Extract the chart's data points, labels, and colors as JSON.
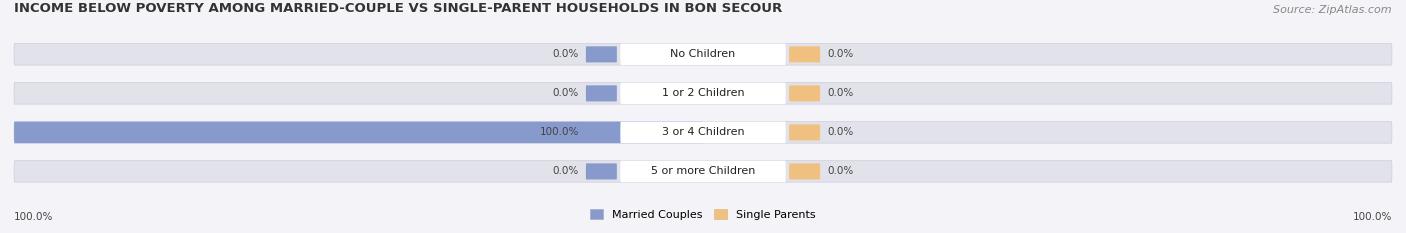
{
  "title": "INCOME BELOW POVERTY AMONG MARRIED-COUPLE VS SINGLE-PARENT HOUSEHOLDS IN BON SECOUR",
  "source": "Source: ZipAtlas.com",
  "categories": [
    "No Children",
    "1 or 2 Children",
    "3 or 4 Children",
    "5 or more Children"
  ],
  "married_values": [
    0.0,
    0.0,
    100.0,
    0.0
  ],
  "single_values": [
    0.0,
    0.0,
    0.0,
    0.0
  ],
  "married_color": "#8899cc",
  "single_color": "#f0c080",
  "bar_bg_color": "#e2e2ea",
  "label_bg_color": "#ffffff",
  "title_fontsize": 9.5,
  "source_fontsize": 8,
  "label_fontsize": 8,
  "cat_fontsize": 8,
  "val_fontsize": 7.5,
  "fig_bg_color": "#f4f4f8",
  "left_axis_label": "100.0%",
  "right_axis_label": "100.0%",
  "married_label": "Married Couples",
  "single_label": "Single Parents"
}
